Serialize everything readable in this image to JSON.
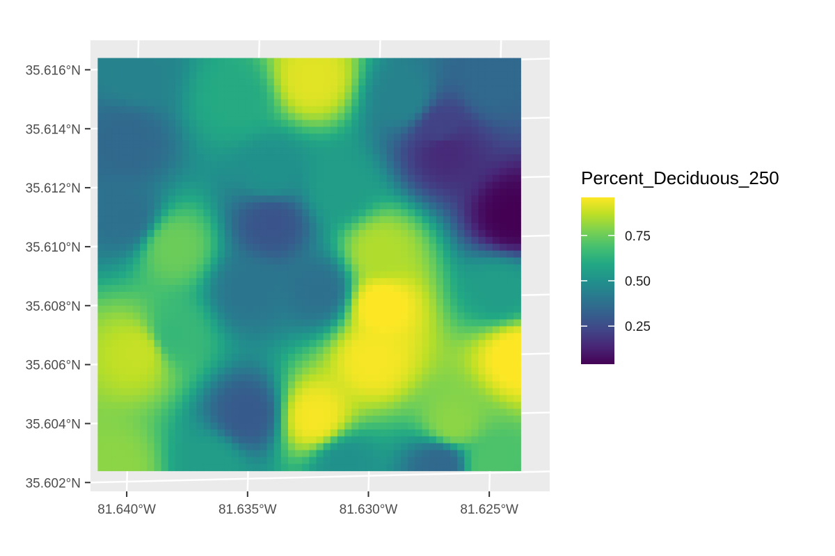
{
  "chart_data": {
    "type": "heatmap",
    "title": "",
    "xlabel": "",
    "ylabel": "",
    "x_ticks": [
      {
        "value": -81.64,
        "label": "81.640°W"
      },
      {
        "value": -81.635,
        "label": "81.635°W"
      },
      {
        "value": -81.63,
        "label": "81.630°W"
      },
      {
        "value": -81.625,
        "label": "81.625°W"
      }
    ],
    "y_ticks": [
      {
        "value": 35.602,
        "label": "35.602°N"
      },
      {
        "value": 35.604,
        "label": "35.604°N"
      },
      {
        "value": 35.606,
        "label": "35.606°N"
      },
      {
        "value": 35.608,
        "label": "35.608°N"
      },
      {
        "value": 35.61,
        "label": "35.610°N"
      },
      {
        "value": 35.612,
        "label": "35.612°N"
      },
      {
        "value": 35.614,
        "label": "35.614°N"
      },
      {
        "value": 35.616,
        "label": "35.616°N"
      }
    ],
    "xlim": [
      -81.6415,
      -81.6225
    ],
    "ylim": [
      35.6017,
      35.617
    ],
    "data_extent": {
      "lon": [
        -81.6412,
        -81.6237
      ],
      "lat": [
        35.6024,
        35.6164
      ]
    },
    "grid": true,
    "panel_background": "#ebebeb",
    "grid_color": "#ffffff",
    "colormap": "viridis",
    "legend": {
      "title": "Percent_Deciduous_250",
      "position": "right",
      "range": [
        0.04,
        0.96
      ],
      "ticks": [
        {
          "value": 0.25,
          "label": "0.25"
        },
        {
          "value": 0.5,
          "label": "0.50"
        },
        {
          "value": 0.75,
          "label": "0.75"
        }
      ]
    },
    "field_description": "Interpolated values estimated from the image (lon, lat, value)",
    "field_samples": [
      {
        "lon": -81.638,
        "lat": 35.61,
        "value": 0.75
      },
      {
        "lon": -81.638,
        "lat": 35.607,
        "value": 0.65
      },
      {
        "lon": -81.6395,
        "lat": 35.6064,
        "value": 0.88
      },
      {
        "lon": -81.6405,
        "lat": 35.6025,
        "value": 0.8
      },
      {
        "lon": -81.64,
        "lat": 35.6135,
        "value": 0.35
      },
      {
        "lon": -81.64,
        "lat": 35.611,
        "value": 0.38
      },
      {
        "lon": -81.6355,
        "lat": 35.615,
        "value": 0.6
      },
      {
        "lon": -81.634,
        "lat": 35.6125,
        "value": 0.5
      },
      {
        "lon": -81.634,
        "lat": 35.6108,
        "value": 0.28
      },
      {
        "lon": -81.635,
        "lat": 35.6043,
        "value": 0.3
      },
      {
        "lon": -81.635,
        "lat": 35.6085,
        "value": 0.4
      },
      {
        "lon": -81.6323,
        "lat": 35.6157,
        "value": 0.92
      },
      {
        "lon": -81.6322,
        "lat": 35.6042,
        "value": 0.95
      },
      {
        "lon": -81.632,
        "lat": 35.6085,
        "value": 0.38
      },
      {
        "lon": -81.6312,
        "lat": 35.612,
        "value": 0.55
      },
      {
        "lon": -81.6295,
        "lat": 35.6098,
        "value": 0.85
      },
      {
        "lon": -81.6295,
        "lat": 35.608,
        "value": 0.97
      },
      {
        "lon": -81.6298,
        "lat": 35.6062,
        "value": 0.95
      },
      {
        "lon": -81.627,
        "lat": 35.614,
        "value": 0.22
      },
      {
        "lon": -81.6268,
        "lat": 35.6133,
        "value": 0.15
      },
      {
        "lon": -81.6285,
        "lat": 35.615,
        "value": 0.45
      },
      {
        "lon": -81.625,
        "lat": 35.6155,
        "value": 0.35
      },
      {
        "lon": -81.624,
        "lat": 35.611,
        "value": 0.04
      },
      {
        "lon": -81.6245,
        "lat": 35.6085,
        "value": 0.55
      },
      {
        "lon": -81.6238,
        "lat": 35.6063,
        "value": 0.97
      },
      {
        "lon": -81.6265,
        "lat": 35.604,
        "value": 0.8
      },
      {
        "lon": -81.627,
        "lat": 35.6026,
        "value": 0.35
      },
      {
        "lon": -81.625,
        "lat": 35.6026,
        "value": 0.7
      },
      {
        "lon": -81.6395,
        "lat": 35.616,
        "value": 0.45
      },
      {
        "lon": -81.631,
        "lat": 35.6026,
        "value": 0.5
      },
      {
        "lon": -81.6365,
        "lat": 35.6026,
        "value": 0.55
      }
    ]
  }
}
